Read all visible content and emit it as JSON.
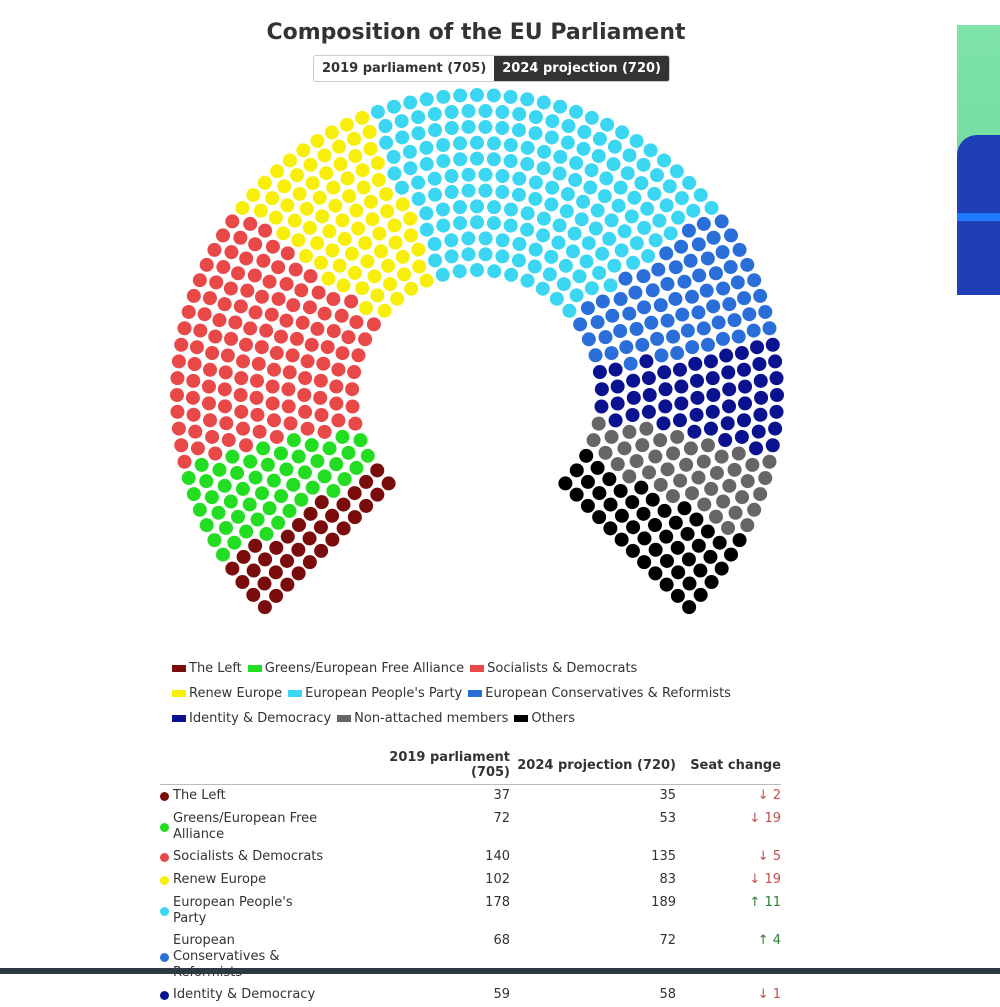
{
  "chart_data": {
    "type": "parliament",
    "title": "Composition of the EU Parliament",
    "series": [
      {
        "name": "The Left",
        "color": "#7a0c0c",
        "values": [
          35
        ]
      },
      {
        "name": "Greens/European Free Alliance",
        "color": "#22dd22",
        "values": [
          53
        ]
      },
      {
        "name": "Socialists & Democrats",
        "color": "#e84848",
        "values": [
          135
        ]
      },
      {
        "name": "Renew Europe",
        "color": "#f7ef0a",
        "values": [
          83
        ]
      },
      {
        "name": "European People's Party",
        "color": "#3ad6f2",
        "values": [
          189
        ]
      },
      {
        "name": "European Conservatives & Reformists",
        "color": "#2a6fd9",
        "values": [
          72
        ]
      },
      {
        "name": "Identity & Democracy",
        "color": "#0b128f",
        "values": [
          58
        ]
      },
      {
        "name": "Non-attached members",
        "color": "#666666",
        "values": [
          45
        ]
      },
      {
        "name": "Others",
        "color": "#000000",
        "values": [
          50
        ]
      }
    ]
  },
  "tabs": [
    {
      "label": "2019 parliament (705)",
      "active": false
    },
    {
      "label": "2024 projection (720)",
      "active": true
    }
  ],
  "table": {
    "headers": [
      "2019 parliament (705)",
      "2024 projection (720)",
      "Seat change"
    ],
    "rows": [
      [
        "The Left",
        37,
        35,
        "↓ 2"
      ],
      [
        "Greens/European Free Alliance",
        72,
        53,
        "↓ 19"
      ],
      [
        "Socialists & Democrats",
        140,
        135,
        "↓ 5"
      ],
      [
        "Renew Europe",
        102,
        83,
        "↓ 19"
      ],
      [
        "European People's Party",
        178,
        189,
        "↑ 11"
      ],
      [
        "European Conservatives & Reformists",
        68,
        72,
        "↑ 4"
      ],
      [
        "Identity & Democracy",
        59,
        58,
        "↓ 1"
      ]
    ]
  }
}
